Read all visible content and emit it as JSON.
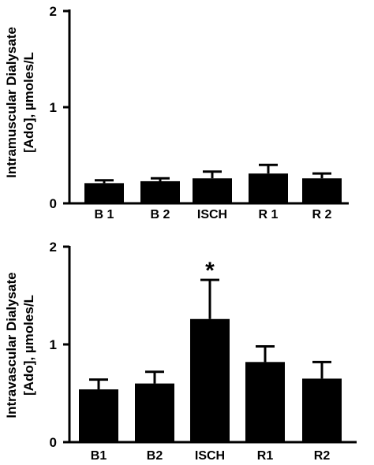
{
  "chart_data": [
    {
      "type": "bar",
      "ylabel_line1": "Intramuscular Dialysate",
      "ylabel_line2": "[Ado], µmoles/L",
      "categories": [
        "B 1",
        "B 2",
        "ISCH",
        "R 1",
        "R 2"
      ],
      "values": [
        0.21,
        0.23,
        0.26,
        0.31,
        0.26
      ],
      "errors": [
        0.03,
        0.03,
        0.07,
        0.09,
        0.05
      ],
      "ylim": [
        0,
        2
      ],
      "yticks": [
        "0",
        "1",
        "2"
      ],
      "bar_color": "#000000",
      "annotations": []
    },
    {
      "type": "bar",
      "ylabel_line1": "Intravascular Dialysate",
      "ylabel_line2": "[Ado], µmoles/L",
      "categories": [
        "B1",
        "B2",
        "ISCH",
        "R1",
        "R2"
      ],
      "values": [
        0.54,
        0.6,
        1.26,
        0.82,
        0.65
      ],
      "errors": [
        0.1,
        0.12,
        0.4,
        0.16,
        0.17
      ],
      "ylim": [
        0,
        2
      ],
      "yticks": [
        "0",
        "1",
        "2"
      ],
      "bar_color": "#000000",
      "annotations": [
        {
          "category_index": 2,
          "text": "*"
        }
      ]
    }
  ]
}
